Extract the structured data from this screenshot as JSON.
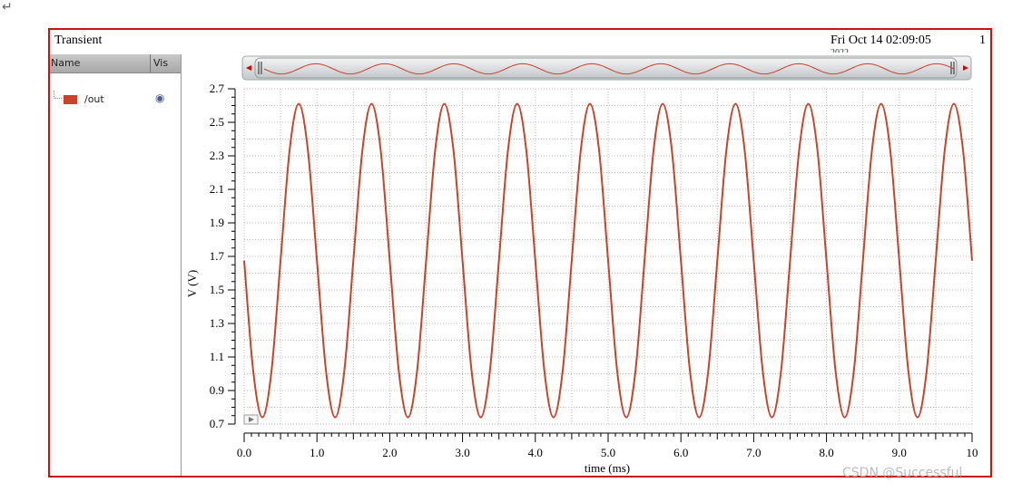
{
  "window": {
    "title": "Transient",
    "date": "Fri Oct 14 02:09:05",
    "date_line2": "2022",
    "page": "1"
  },
  "panel": {
    "col_name": "Name",
    "col_vis": "Vis",
    "signals": [
      {
        "name": "/out",
        "color": "#c8432b",
        "visible_icon": "eye-icon"
      }
    ]
  },
  "watermark": "CSDN @Successful",
  "return_mark": "↵",
  "chart_data": {
    "type": "line",
    "xlabel": "time (ms)",
    "ylabel": "V (V)",
    "xlim": [
      0,
      10
    ],
    "ylim": [
      0.7,
      2.7
    ],
    "xticks": [
      "0.0",
      "1.0",
      "2.0",
      "3.0",
      "4.0",
      "5.0",
      "6.0",
      "7.0",
      "8.0",
      "9.0",
      "10"
    ],
    "yticks": [
      "0.7",
      "0.9",
      "1.1",
      "1.3",
      "1.5",
      "1.7",
      "1.9",
      "2.1",
      "2.3",
      "2.5",
      "2.7"
    ],
    "grid": true,
    "line_color": "#c8432b",
    "series": [
      {
        "name": "/out",
        "period_ms": 1,
        "y_one_period": [
          1.675,
          1.014,
          0.74,
          1.014,
          1.675,
          2.336,
          2.61,
          2.336
        ],
        "x_one_period": [
          0,
          0.125,
          0.25,
          0.375,
          0.5,
          0.625,
          0.75,
          0.875
        ],
        "cycles": 10
      }
    ]
  }
}
